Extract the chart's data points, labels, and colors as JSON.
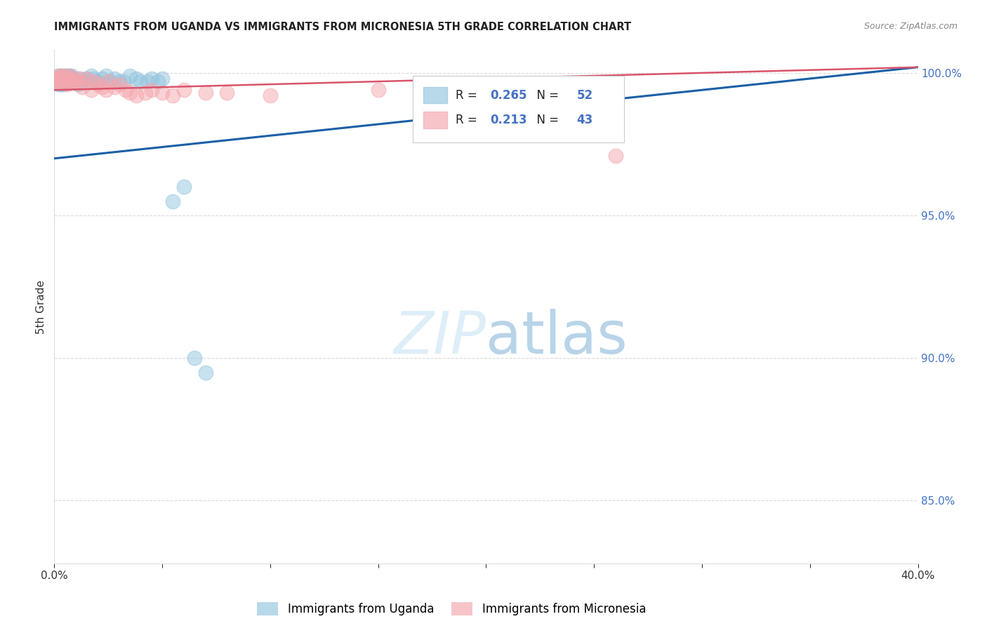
{
  "title": "IMMIGRANTS FROM UGANDA VS IMMIGRANTS FROM MICRONESIA 5TH GRADE CORRELATION CHART",
  "source": "Source: ZipAtlas.com",
  "ylabel": "5th Grade",
  "xmin": 0.0,
  "xmax": 0.4,
  "ymin": 0.828,
  "ymax": 1.008,
  "color_uganda": "#92c5de",
  "color_micronesia": "#f4a6ad",
  "color_line_uganda": "#1a5fa8",
  "color_line_micronesia": "#d9536a",
  "watermark_color": "#ddeef8",
  "grid_color": "#cccccc",
  "ytick_color": "#4472c4",
  "uganda_scatter_x": [
    0.001,
    0.001,
    0.002,
    0.002,
    0.002,
    0.002,
    0.003,
    0.003,
    0.003,
    0.003,
    0.004,
    0.004,
    0.004,
    0.004,
    0.005,
    0.005,
    0.005,
    0.006,
    0.006,
    0.006,
    0.007,
    0.007,
    0.008,
    0.008,
    0.009,
    0.009,
    0.01,
    0.011,
    0.012,
    0.013,
    0.015,
    0.016,
    0.017,
    0.018,
    0.02,
    0.022,
    0.024,
    0.026,
    0.028,
    0.03,
    0.032,
    0.035,
    0.038,
    0.04,
    0.043,
    0.045,
    0.048,
    0.05,
    0.055,
    0.06,
    0.065,
    0.07
  ],
  "uganda_scatter_y": [
    0.998,
    0.997,
    0.999,
    0.998,
    0.997,
    0.996,
    0.999,
    0.998,
    0.997,
    0.996,
    0.999,
    0.998,
    0.997,
    0.996,
    0.999,
    0.998,
    0.997,
    0.999,
    0.998,
    0.997,
    0.999,
    0.998,
    0.999,
    0.998,
    0.998,
    0.997,
    0.997,
    0.996,
    0.998,
    0.997,
    0.998,
    0.997,
    0.999,
    0.998,
    0.997,
    0.998,
    0.999,
    0.997,
    0.998,
    0.997,
    0.997,
    0.999,
    0.998,
    0.997,
    0.997,
    0.998,
    0.997,
    0.998,
    0.955,
    0.96,
    0.9,
    0.895
  ],
  "micronesia_scatter_x": [
    0.001,
    0.001,
    0.002,
    0.002,
    0.002,
    0.003,
    0.003,
    0.004,
    0.004,
    0.005,
    0.005,
    0.006,
    0.006,
    0.007,
    0.007,
    0.008,
    0.009,
    0.01,
    0.011,
    0.012,
    0.013,
    0.015,
    0.017,
    0.018,
    0.02,
    0.022,
    0.024,
    0.025,
    0.028,
    0.03,
    0.033,
    0.035,
    0.038,
    0.042,
    0.045,
    0.05,
    0.055,
    0.06,
    0.07,
    0.08,
    0.1,
    0.15,
    0.26
  ],
  "micronesia_scatter_y": [
    0.998,
    0.997,
    0.999,
    0.998,
    0.997,
    0.999,
    0.997,
    0.998,
    0.997,
    0.999,
    0.998,
    0.997,
    0.996,
    0.999,
    0.997,
    0.998,
    0.997,
    0.997,
    0.998,
    0.997,
    0.995,
    0.998,
    0.994,
    0.997,
    0.996,
    0.995,
    0.994,
    0.997,
    0.995,
    0.996,
    0.994,
    0.993,
    0.992,
    0.993,
    0.994,
    0.993,
    0.992,
    0.994,
    0.993,
    0.993,
    0.992,
    0.994,
    0.971
  ],
  "ug_trend_x0": 0.0,
  "ug_trend_y0": 0.97,
  "ug_trend_x1": 0.4,
  "ug_trend_y1": 1.002,
  "mic_trend_x0": 0.0,
  "mic_trend_y0": 0.994,
  "mic_trend_x1": 0.4,
  "mic_trend_y1": 1.002
}
